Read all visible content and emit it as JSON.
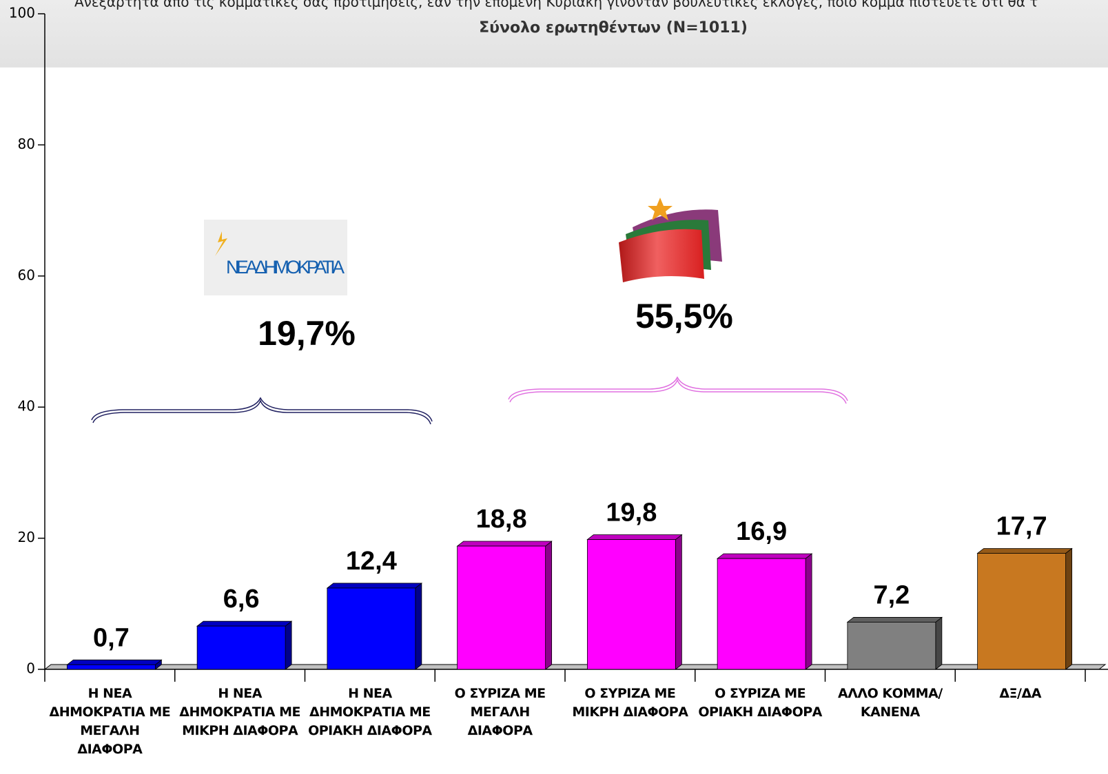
{
  "chart_data": {
    "type": "bar",
    "title": "Ανεξάρτητα από τις κομματικές σας προτιμήσεις, εάν την επόμενη Κυριακή γίνονταν βουλευτικές εκλογές, ποιο κόμμα πιστεύετε ότι θα τ",
    "subtitle": "Σύνολο ερωτηθέντων (N=1011)",
    "categories": [
      "Η ΝΕΑ\nΔΗΜΟΚΡΑΤΙΑ ΜΕ\nΜΕΓΑΛΗ\nΔΙΑΦΟΡΑ",
      "Η ΝΕΑ\nΔΗΜΟΚΡΑΤΙΑ ΜΕ\nΜΙΚΡΗ ΔΙΑΦΟΡΑ",
      "Η ΝΕΑ\nΔΗΜΟΚΡΑΤΙΑ ΜΕ\nΟΡΙΑΚΗ ΔΙΑΦΟΡΑ",
      "Ο ΣΥΡΙΖΑ ΜΕ\nΜΕΓΑΛΗ\nΔΙΑΦΟΡΑ",
      "Ο ΣΥΡΙΖΑ ΜΕ\nΜΙΚΡΗ ΔΙΑΦΟΡΑ",
      "Ο ΣΥΡΙΖΑ ΜΕ\nΟΡΙΑΚΗ ΔΙΑΦΟΡΑ",
      "ΑΛΛΟ ΚΟΜΜΑ/\nΚΑΝΕΝΑ",
      "ΔΞ/ΔΑ"
    ],
    "values": [
      0.7,
      6.6,
      12.4,
      18.8,
      19.8,
      16.9,
      7.2,
      17.7
    ],
    "value_labels": [
      "0,7",
      "6,6",
      "12,4",
      "18,8",
      "19,8",
      "16,9",
      "7,2",
      "17,7"
    ],
    "colors": [
      "#0000ff",
      "#0000ff",
      "#0000ff",
      "#ff00ff",
      "#ff00ff",
      "#ff00ff",
      "#808080",
      "#c87820"
    ],
    "ylim": [
      0,
      100
    ],
    "yticks": [
      0,
      20,
      40,
      60,
      80,
      100
    ],
    "annotations": [
      "19,7%",
      "55,5%"
    ],
    "logo_text": "ΝΕΑΔΗΜΟΚΡΑΤΙΑ"
  }
}
